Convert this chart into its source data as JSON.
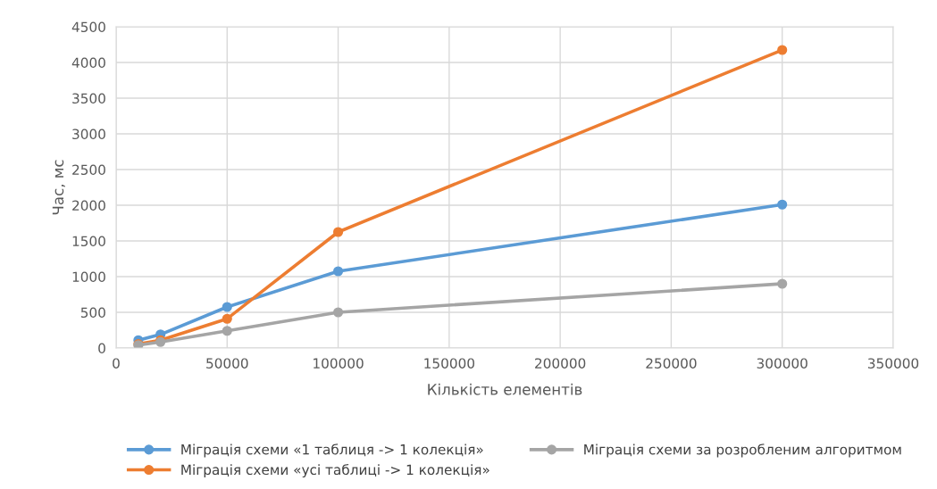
{
  "chart_data": {
    "type": "line",
    "xlabel": "Кількість елементів",
    "ylabel": "Час, мс",
    "x": [
      10000,
      20000,
      50000,
      100000,
      300000
    ],
    "series": [
      {
        "name": "Міграція схеми «1 таблиця -> 1 колекція»",
        "color": "#5b9bd5",
        "values": [
          110,
          190,
          575,
          1075,
          2010
        ]
      },
      {
        "name": "Міграція схеми «усі таблиці -> 1 колекція»",
        "color": "#ed7d31",
        "values": [
          55,
          110,
          410,
          1625,
          4175
        ]
      },
      {
        "name": "Міграція схеми за розробленим алгоритмом",
        "color": "#a5a5a5",
        "values": [
          40,
          85,
          240,
          500,
          900
        ]
      }
    ],
    "xlim": [
      0,
      350000
    ],
    "xticks": [
      0,
      50000,
      100000,
      150000,
      200000,
      250000,
      300000,
      350000
    ],
    "ylim": [
      0,
      4500
    ],
    "yticks": [
      0,
      500,
      1000,
      1500,
      2000,
      2500,
      3000,
      3500,
      4000,
      4500
    ],
    "grid": true,
    "legend": "bottom",
    "marker": "circle",
    "line_style": "solid"
  }
}
